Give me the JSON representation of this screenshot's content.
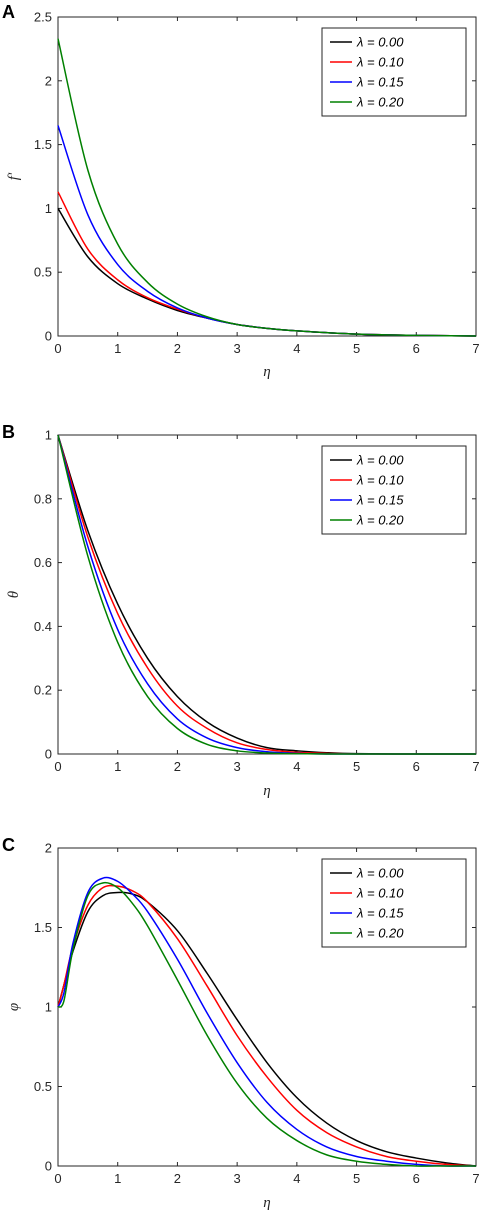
{
  "chart_data": [
    {
      "type": "line",
      "panel_label": "A",
      "xlabel": "η",
      "ylabel": "f'",
      "xlim": [
        0,
        7
      ],
      "ylim": [
        0,
        2.5
      ],
      "xticks": [
        "0",
        "1",
        "2",
        "3",
        "4",
        "5",
        "6",
        "7"
      ],
      "yticks": [
        "0",
        "0.5",
        "1",
        "1.5",
        "2",
        "2.5"
      ],
      "legend_position": "top-right",
      "x": [
        0,
        0.5,
        1,
        1.5,
        2,
        2.5,
        3,
        3.5,
        4,
        5,
        6,
        7
      ],
      "series": [
        {
          "name": "λ = 0.00",
          "color": "#000000",
          "values": [
            1.0,
            0.62,
            0.41,
            0.29,
            0.2,
            0.14,
            0.09,
            0.06,
            0.04,
            0.015,
            0.005,
            0.0
          ]
        },
        {
          "name": "λ = 0.10",
          "color": "#ff0000",
          "values": [
            1.13,
            0.68,
            0.44,
            0.3,
            0.21,
            0.14,
            0.09,
            0.06,
            0.04,
            0.015,
            0.005,
            0.0
          ]
        },
        {
          "name": "λ = 0.15",
          "color": "#0000ff",
          "values": [
            1.65,
            0.95,
            0.56,
            0.35,
            0.22,
            0.14,
            0.09,
            0.06,
            0.04,
            0.015,
            0.005,
            0.0
          ]
        },
        {
          "name": "λ = 0.20",
          "color": "#008000",
          "values": [
            2.33,
            1.3,
            0.72,
            0.42,
            0.25,
            0.15,
            0.09,
            0.06,
            0.04,
            0.015,
            0.005,
            0.0
          ]
        }
      ]
    },
    {
      "type": "line",
      "panel_label": "B",
      "xlabel": "η",
      "ylabel": "θ",
      "xlim": [
        0,
        7
      ],
      "ylim": [
        0,
        1
      ],
      "xticks": [
        "0",
        "1",
        "2",
        "3",
        "4",
        "5",
        "6",
        "7"
      ],
      "yticks": [
        "0",
        "0.2",
        "0.4",
        "0.6",
        "0.8",
        "1"
      ],
      "legend_position": "top-right",
      "x": [
        0,
        0.5,
        1,
        1.5,
        2,
        2.5,
        3,
        3.5,
        4,
        4.5,
        5,
        6,
        7
      ],
      "series": [
        {
          "name": "λ = 0.00",
          "color": "#000000",
          "values": [
            1.0,
            0.7,
            0.47,
            0.3,
            0.18,
            0.1,
            0.05,
            0.02,
            0.01,
            0.004,
            0.001,
            0.0,
            0.0
          ]
        },
        {
          "name": "λ = 0.10",
          "color": "#ff0000",
          "values": [
            1.0,
            0.68,
            0.44,
            0.27,
            0.15,
            0.08,
            0.035,
            0.014,
            0.005,
            0.002,
            0.0,
            0.0,
            0.0
          ]
        },
        {
          "name": "λ = 0.15",
          "color": "#0000ff",
          "values": [
            1.0,
            0.65,
            0.39,
            0.22,
            0.11,
            0.05,
            0.02,
            0.007,
            0.002,
            0.0,
            0.0,
            0.0,
            0.0
          ]
        },
        {
          "name": "λ = 0.20",
          "color": "#008000",
          "values": [
            1.0,
            0.62,
            0.35,
            0.18,
            0.08,
            0.03,
            0.01,
            0.003,
            0.001,
            0.0,
            0.0,
            0.0,
            0.0
          ]
        }
      ]
    },
    {
      "type": "line",
      "panel_label": "C",
      "xlabel": "η",
      "ylabel": "φ",
      "xlim": [
        0,
        7
      ],
      "ylim": [
        0,
        2
      ],
      "xticks": [
        "0",
        "1",
        "2",
        "3",
        "4",
        "5",
        "6",
        "7"
      ],
      "yticks": [
        "0",
        "0.5",
        "1",
        "1.5",
        "2"
      ],
      "legend_position": "top-right",
      "x": [
        0,
        0.1,
        0.25,
        0.5,
        0.75,
        1,
        1.25,
        1.5,
        2,
        2.5,
        3,
        3.5,
        4,
        4.5,
        5,
        5.5,
        6,
        6.5,
        7
      ],
      "series": [
        {
          "name": "λ = 0.00",
          "color": "#000000",
          "values": [
            1.0,
            1.14,
            1.35,
            1.6,
            1.7,
            1.72,
            1.71,
            1.66,
            1.48,
            1.21,
            0.92,
            0.65,
            0.43,
            0.27,
            0.16,
            0.09,
            0.05,
            0.02,
            0.0
          ]
        },
        {
          "name": "λ = 0.10",
          "color": "#ff0000",
          "values": [
            1.0,
            1.14,
            1.38,
            1.64,
            1.75,
            1.76,
            1.73,
            1.66,
            1.43,
            1.13,
            0.82,
            0.56,
            0.35,
            0.21,
            0.12,
            0.06,
            0.03,
            0.01,
            0.0
          ]
        },
        {
          "name": "λ = 0.15",
          "color": "#0000ff",
          "values": [
            1.0,
            1.09,
            1.4,
            1.72,
            1.81,
            1.79,
            1.71,
            1.6,
            1.3,
            0.96,
            0.65,
            0.4,
            0.23,
            0.12,
            0.06,
            0.03,
            0.01,
            0.0,
            0.0
          ]
        },
        {
          "name": "λ = 0.20",
          "color": "#008000",
          "values": [
            1.0,
            1.04,
            1.36,
            1.7,
            1.78,
            1.75,
            1.65,
            1.51,
            1.17,
            0.82,
            0.52,
            0.3,
            0.16,
            0.07,
            0.03,
            0.01,
            0.0,
            0.0,
            0.0
          ]
        }
      ]
    }
  ]
}
